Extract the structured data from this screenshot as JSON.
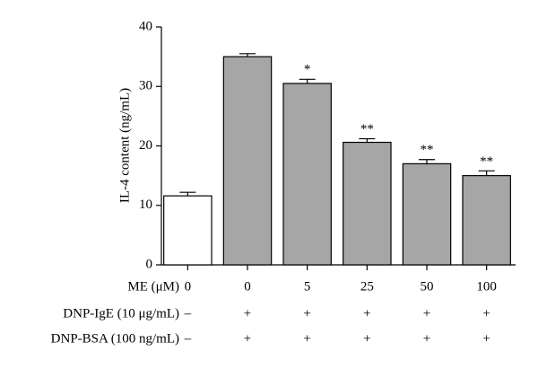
{
  "chart_data": {
    "type": "bar",
    "ylabel": "IL-4 content (ng/mL)",
    "xlabel": "ME (μM)",
    "categories": [
      "0",
      "0",
      "5",
      "25",
      "50",
      "100"
    ],
    "values": [
      11.6,
      35,
      30.5,
      20.6,
      17,
      15
    ],
    "errors": [
      0.6,
      0.5,
      0.7,
      0.6,
      0.7,
      0.8
    ],
    "colors": [
      "#ffffff",
      "#a6a6a6",
      "#a6a6a6",
      "#a6a6a6",
      "#a6a6a6",
      "#a6a6a6"
    ],
    "significance": [
      null,
      null,
      "*",
      "**",
      "**",
      "**"
    ],
    "treatments": [
      {
        "label": "DNP-IgE (10 μg/mL)",
        "values": [
          "–",
          "+",
          "+",
          "+",
          "+",
          "+"
        ]
      },
      {
        "label": "DNP-BSA (100 ng/mL)",
        "values": [
          "–",
          "+",
          "+",
          "+",
          "+",
          "+"
        ]
      }
    ],
    "ylim": [
      0,
      40
    ],
    "yticks": [
      0,
      10,
      20,
      30,
      40
    ]
  }
}
